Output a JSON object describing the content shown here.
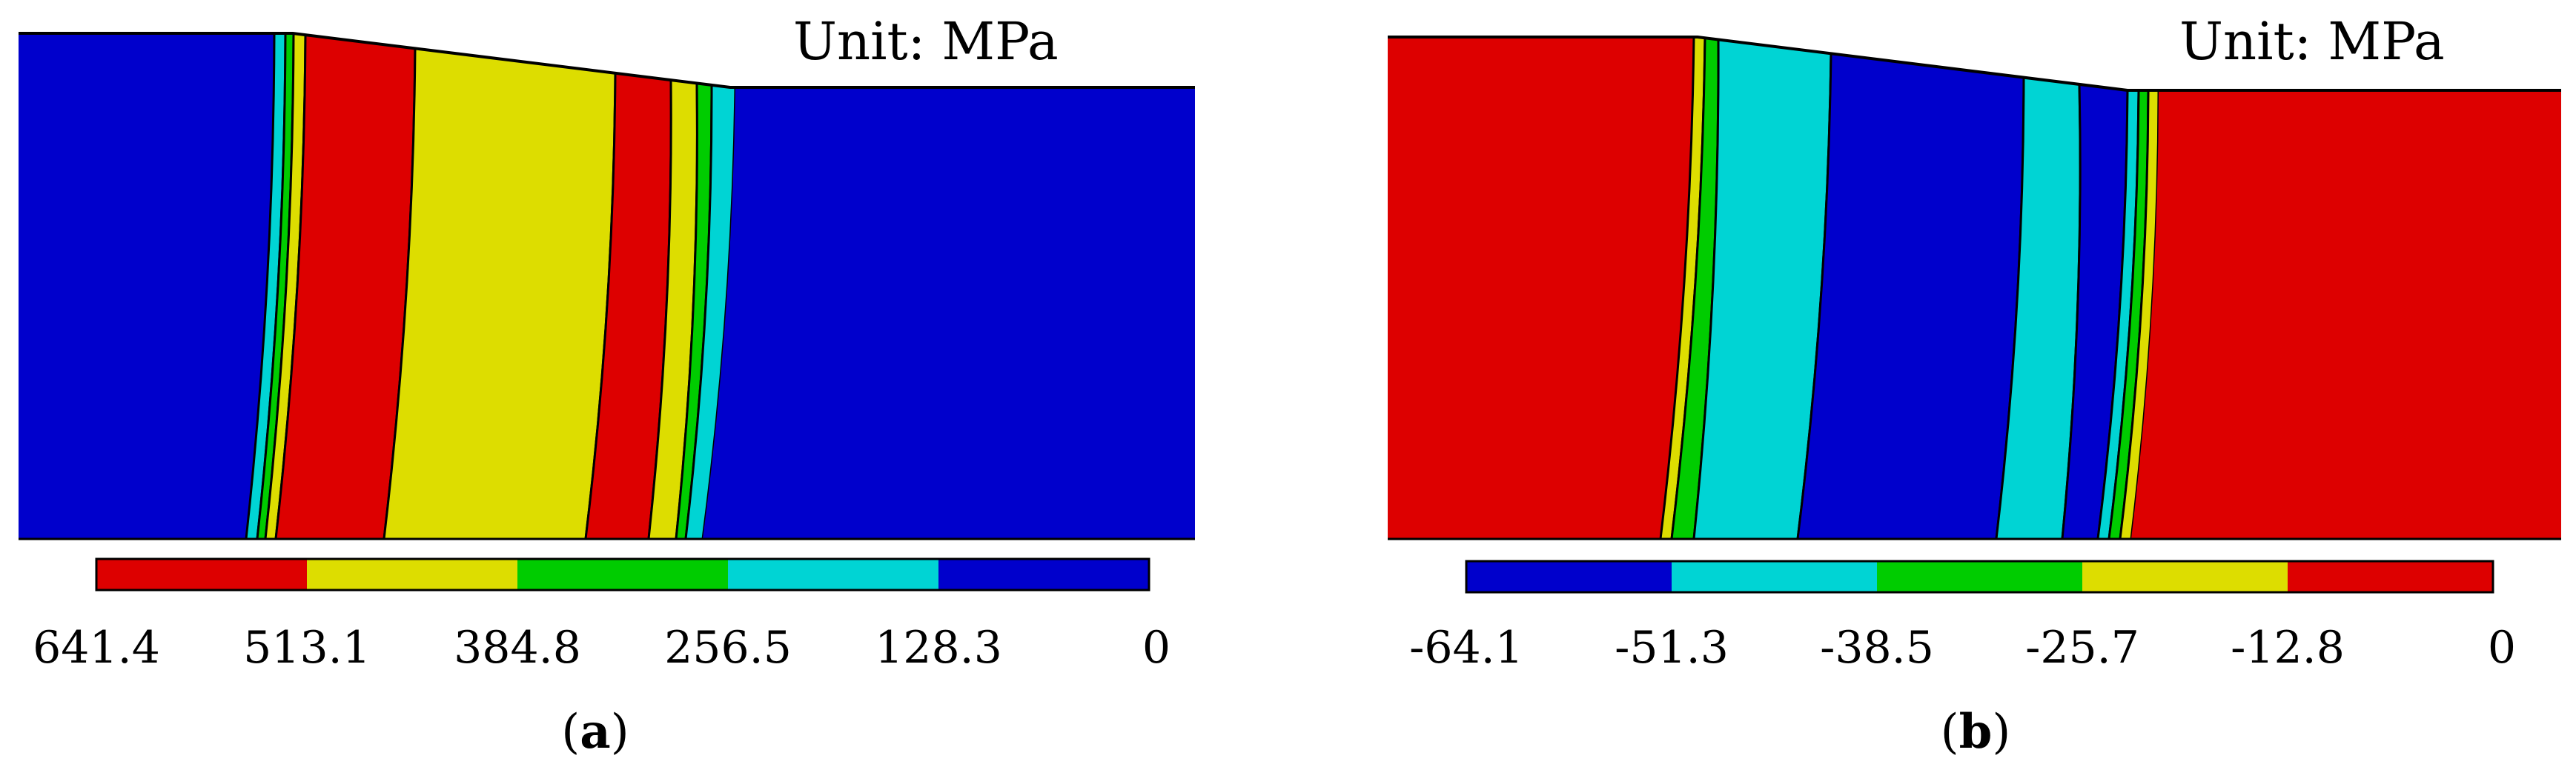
{
  "colors": {
    "red": "#dd0000",
    "yellow": "#dddd00",
    "green": "#00cc00",
    "cyan": "#00d4d4",
    "blue": "#0000cc",
    "outline": "#000000"
  },
  "panels": [
    {
      "id": "a",
      "unit_label": "Unit: MPa",
      "caption_open": "(",
      "caption_letter": "a",
      "caption_close": ")",
      "legend": {
        "colors": [
          "red",
          "yellow",
          "green",
          "cyan",
          "blue"
        ],
        "ticks": [
          "641.4",
          "513.1",
          "384.8",
          "256.5",
          "128.3",
          "0"
        ]
      },
      "bands": [
        "blue",
        "cyan",
        "green",
        "yellow",
        "red",
        "yellow",
        "red",
        "yellow",
        "green",
        "cyan",
        "blue"
      ]
    },
    {
      "id": "b",
      "unit_label": "Unit: MPa",
      "caption_open": "(",
      "caption_letter": "b",
      "caption_close": ")",
      "legend": {
        "colors": [
          "blue",
          "cyan",
          "green",
          "yellow",
          "red"
        ],
        "ticks": [
          "-64.1",
          "-51.3",
          "-38.5",
          "-25.7",
          "-12.8",
          "0"
        ]
      },
      "bands": [
        "red",
        "yellow",
        "green",
        "cyan",
        "blue",
        "cyan",
        "blue",
        "cyan",
        "green",
        "yellow",
        "red"
      ]
    }
  ]
}
